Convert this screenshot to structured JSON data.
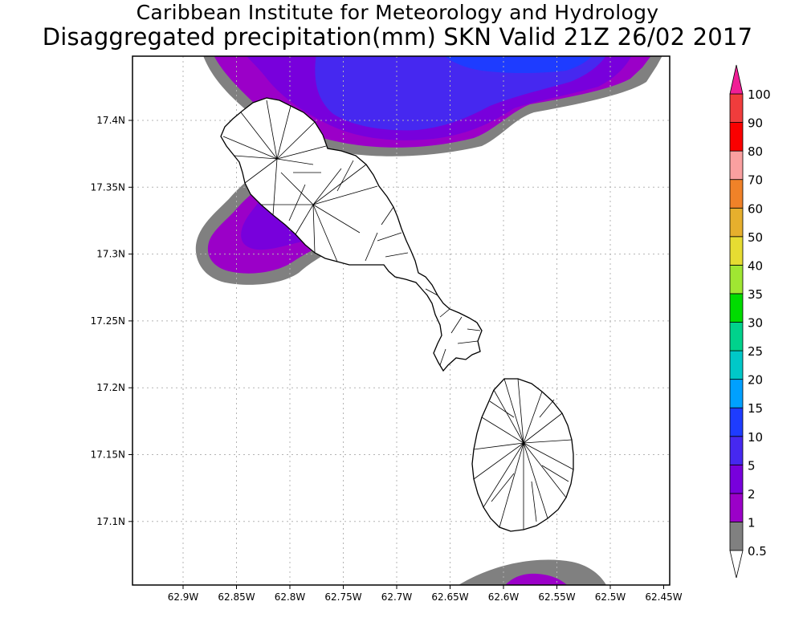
{
  "title": {
    "line1": "Caribbean Institute for Meteorology and Hydrology",
    "line2": "Disaggregated precipitation(mm) SKN Valid 21Z 26/02 2017"
  },
  "axes": {
    "lon_ticks": [
      "62.9W",
      "62.85W",
      "62.8W",
      "62.75W",
      "62.7W",
      "62.65W",
      "62.6W",
      "62.55W",
      "62.5W",
      "62.45W"
    ],
    "lat_ticks": [
      "17.4N",
      "17.35N",
      "17.3N",
      "17.25N",
      "17.2N",
      "17.15N",
      "17.1N"
    ]
  },
  "legend": {
    "levels": [
      {
        "label": "0.5",
        "color": "#808080"
      },
      {
        "label": "1",
        "color": "#9b00c8"
      },
      {
        "label": "2",
        "color": "#7800dc"
      },
      {
        "label": "5",
        "color": "#4628f0"
      },
      {
        "label": "10",
        "color": "#1e3cff"
      },
      {
        "label": "15",
        "color": "#00a0ff"
      },
      {
        "label": "20",
        "color": "#00c8c8"
      },
      {
        "label": "25",
        "color": "#00d28c"
      },
      {
        "label": "30",
        "color": "#00dc00"
      },
      {
        "label": "35",
        "color": "#a0e632"
      },
      {
        "label": "40",
        "color": "#e6dc32"
      },
      {
        "label": "50",
        "color": "#e6af2d"
      },
      {
        "label": "60",
        "color": "#f08228"
      },
      {
        "label": "70",
        "color": "#faa0a0"
      },
      {
        "label": "80",
        "color": "#fa0000"
      },
      {
        "label": "90",
        "color": "#f03c3c"
      },
      {
        "label": "100",
        "color": "#f01e96"
      }
    ],
    "top_label": "100",
    "top_arrow_color": "#f01e96"
  },
  "colors": {
    "gray": "#808080",
    "purple": "#9b00c8",
    "violet": "#7800dc",
    "blue": "#4628f0",
    "deepblue": "#1e3cff",
    "grid": "#b4b4b4",
    "coast": "#000000"
  }
}
